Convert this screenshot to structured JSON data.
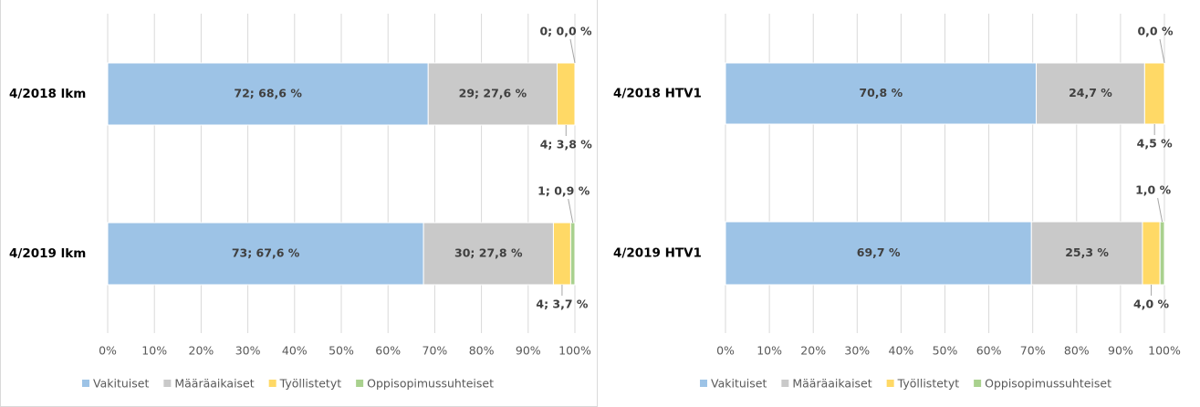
{
  "chart_data": [
    {
      "type": "stacked_bar_horizontal",
      "categories": [
        "4/2018 lkm",
        "4/2019 lkm"
      ],
      "series": [
        {
          "name": "Vakituiset",
          "color": "#9dc3e6",
          "values": [
            68.6,
            67.6
          ],
          "value_labels": [
            "72; 68,6 %",
            "73; 67,6 %"
          ]
        },
        {
          "name": "Määräaikaiset",
          "color": "#c9c9c9",
          "values": [
            27.6,
            27.8
          ],
          "value_labels": [
            "29; 27,6 %",
            "30; 27,8 %"
          ]
        },
        {
          "name": "Työllistetyt",
          "color": "#ffd966",
          "values": [
            3.8,
            3.7
          ],
          "value_labels": [
            "4; 3,8 %",
            "4; 3,7 %"
          ]
        },
        {
          "name": "Oppisopimussuhteiset",
          "color": "#a9d18e",
          "values": [
            0.0,
            0.9
          ],
          "value_labels": [
            "0; 0,0 %",
            "1; 0,9 %"
          ]
        }
      ],
      "xlim": [
        0,
        100
      ],
      "xticks": [
        {
          "value": 0,
          "label": "0%"
        },
        {
          "value": 10,
          "label": "10%"
        },
        {
          "value": 20,
          "label": "20%"
        },
        {
          "value": 30,
          "label": "30%"
        },
        {
          "value": 40,
          "label": "40%"
        },
        {
          "value": 50,
          "label": "50%"
        },
        {
          "value": 60,
          "label": "60%"
        },
        {
          "value": 70,
          "label": "70%"
        },
        {
          "value": 80,
          "label": "80%"
        },
        {
          "value": 90,
          "label": "90%"
        },
        {
          "value": 100,
          "label": "100%"
        }
      ],
      "grid": true,
      "legend": "bottom"
    },
    {
      "type": "stacked_bar_horizontal",
      "categories": [
        "4/2018 HTV1",
        "4/2019 HTV1"
      ],
      "series": [
        {
          "name": "Vakituiset",
          "color": "#9dc3e6",
          "values": [
            70.8,
            69.7
          ],
          "value_labels": [
            "70,8 %",
            "69,7 %"
          ]
        },
        {
          "name": "Määräaikaiset",
          "color": "#c9c9c9",
          "values": [
            24.7,
            25.3
          ],
          "value_labels": [
            "24,7 %",
            "25,3 %"
          ]
        },
        {
          "name": "Työllistetyt",
          "color": "#ffd966",
          "values": [
            4.5,
            4.0
          ],
          "value_labels": [
            "4,5 %",
            "4,0 %"
          ]
        },
        {
          "name": "Oppisopimussuhteiset",
          "color": "#a9d18e",
          "values": [
            0.0,
            1.0
          ],
          "value_labels": [
            "0,0 %",
            "1,0 %"
          ]
        }
      ],
      "xlim": [
        0,
        100
      ],
      "xticks": [
        {
          "value": 0,
          "label": "0%"
        },
        {
          "value": 10,
          "label": "10%"
        },
        {
          "value": 20,
          "label": "20%"
        },
        {
          "value": 30,
          "label": "30%"
        },
        {
          "value": 40,
          "label": "40%"
        },
        {
          "value": 50,
          "label": "50%"
        },
        {
          "value": 60,
          "label": "60%"
        },
        {
          "value": 70,
          "label": "70%"
        },
        {
          "value": 80,
          "label": "80%"
        },
        {
          "value": 90,
          "label": "90%"
        },
        {
          "value": 100,
          "label": "100%"
        }
      ],
      "grid": true,
      "legend": "bottom"
    }
  ]
}
